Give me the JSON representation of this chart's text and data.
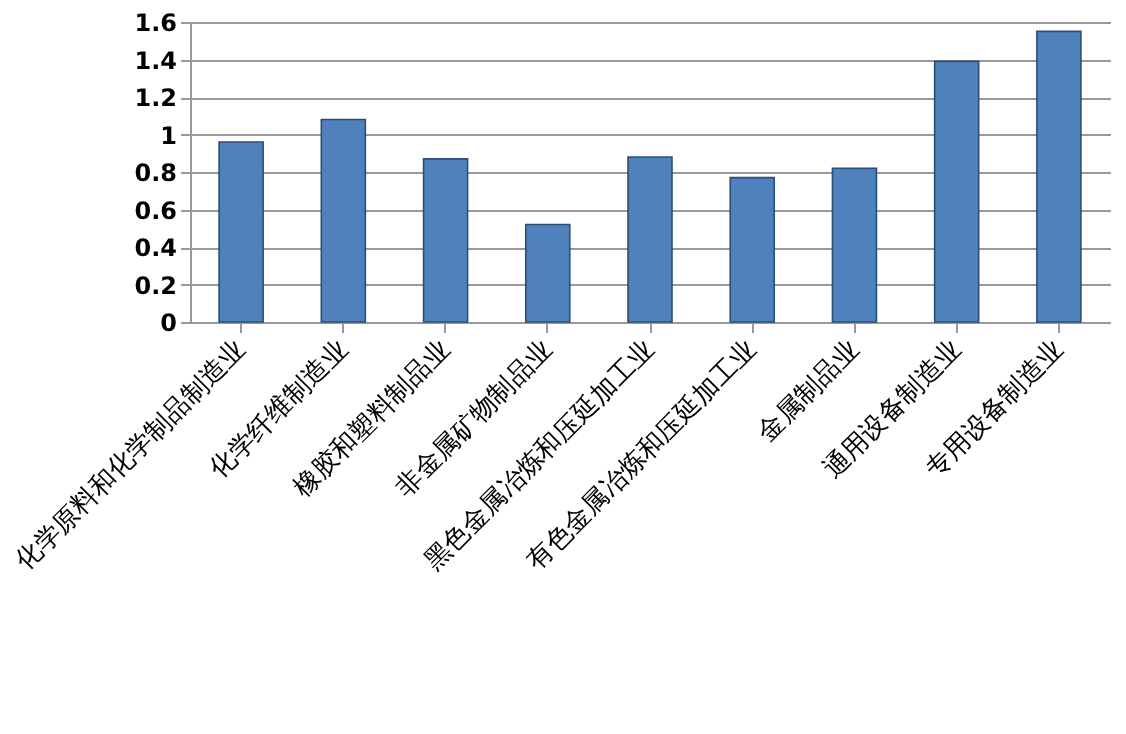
{
  "chart_data": {
    "type": "bar",
    "categories": [
      "化学原料和化学制品制造业",
      "化学纤维制造业",
      "橡胶和塑料制品业",
      "非金属矿物制品业",
      "黑色金属冶炼和压延加工业",
      "有色金属冶炼和压延加工业",
      "金属制品业",
      "通用设备制造业",
      "专用设备制造业"
    ],
    "values": [
      0.96,
      1.08,
      0.87,
      0.52,
      0.88,
      0.77,
      0.82,
      1.39,
      1.55
    ],
    "color": "#4f81bd",
    "ylim": [
      0,
      1.6
    ],
    "yticks": [
      0,
      0.2,
      0.4,
      0.6,
      0.8,
      1,
      1.2,
      1.4,
      1.6
    ],
    "grid": "y"
  }
}
